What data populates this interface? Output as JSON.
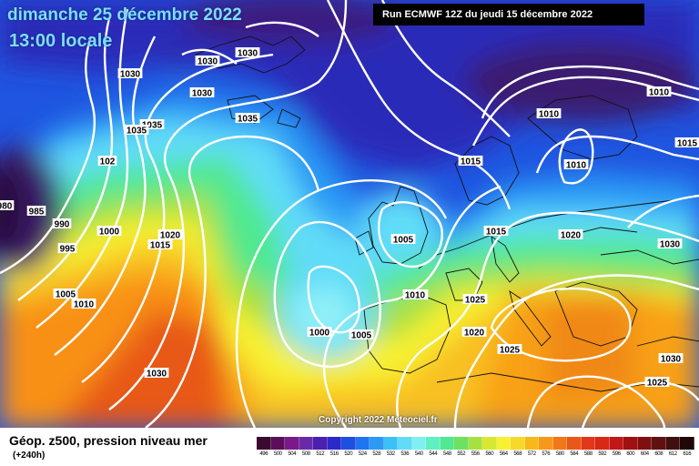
{
  "header": {
    "date": "dimanche 25 décembre 2022",
    "time": "13:00 locale",
    "run": "Run ECMWF 12Z du jeudi 15 décembre 2022"
  },
  "copyright": "Copyright 2022 Meteociel.fr",
  "footer": {
    "title": "Géop. z500, pression niveau mer",
    "subtitle": "(+240h)"
  },
  "legend_scale": {
    "values": [
      "496",
      "500",
      "504",
      "508",
      "512",
      "516",
      "520",
      "524",
      "528",
      "532",
      "536",
      "540",
      "544",
      "548",
      "552",
      "556",
      "560",
      "564",
      "568",
      "572",
      "576",
      "580",
      "584",
      "588",
      "592",
      "596",
      "600",
      "604",
      "608",
      "612",
      "616"
    ],
    "colors": [
      "#3a0a30",
      "#5b0f5a",
      "#7a1a8a",
      "#6a2aa8",
      "#4b1fb0",
      "#2a2ac8",
      "#1f4fe0",
      "#1f75f0",
      "#2a9af5",
      "#3cc0f8",
      "#60dcf8",
      "#7ff0f0",
      "#60f0c0",
      "#50e890",
      "#70e060",
      "#a8e040",
      "#d8e830",
      "#f8f030",
      "#f8d828",
      "#f8b818",
      "#f8981a",
      "#f07818",
      "#e85818",
      "#e03818",
      "#d82818",
      "#c01818",
      "#a01010",
      "#801010",
      "#601010",
      "#401010",
      "#200808"
    ]
  },
  "pressure_labels": [
    "1030",
    "1030",
    "1030",
    "1030",
    "1035",
    "1035",
    "1035",
    "102",
    "980",
    "985",
    "990",
    "995",
    "1000",
    "1015",
    "1020",
    "1005",
    "1010",
    "1030",
    "1000",
    "1005",
    "1010",
    "1015",
    "1005",
    "1015",
    "1020",
    "1025",
    "1020",
    "1025",
    "1010",
    "1010",
    "1010",
    "1015",
    "1030",
    "1030",
    "1025",
    "1010"
  ]
}
